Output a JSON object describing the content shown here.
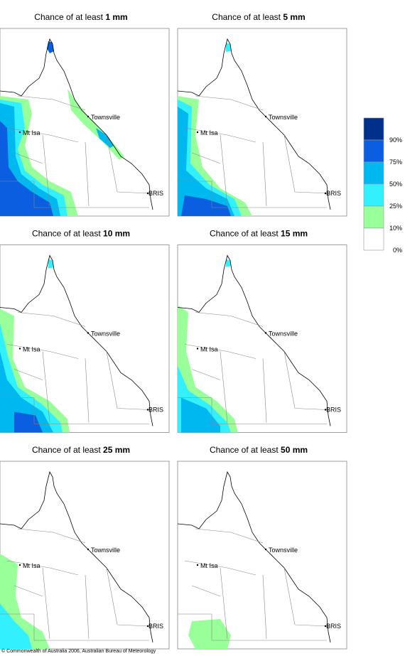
{
  "panels": [
    {
      "title_prefix": "Chance of at least ",
      "amount": "1 mm",
      "places": [
        "Townsville",
        "Mt Isa",
        "BRIS"
      ]
    },
    {
      "title_prefix": "Chance of at least ",
      "amount": "5 mm",
      "places": [
        "Townsville",
        "Mt Isa",
        "BRIS"
      ]
    },
    {
      "title_prefix": "Chance of at least ",
      "amount": "10 mm",
      "places": [
        "Townsville",
        "Mt Isa",
        "BRIS"
      ]
    },
    {
      "title_prefix": "Chance of at least ",
      "amount": "15 mm",
      "places": [
        "Townsville",
        "Mt Isa",
        "BRIS"
      ]
    },
    {
      "title_prefix": "Chance of at least ",
      "amount": "25 mm",
      "places": [
        "Townsville",
        "Mt Isa",
        "BRIS"
      ]
    },
    {
      "title_prefix": "Chance of at least ",
      "amount": "50 mm",
      "places": [
        "Townsville",
        "Mt Isa",
        "BRIS"
      ]
    }
  ],
  "legend": [
    {
      "color": "#00308a",
      "label": "90%"
    },
    {
      "color": "#0b5ee0",
      "label": "75%"
    },
    {
      "color": "#00b8f0",
      "label": "50%"
    },
    {
      "color": "#33f0ff",
      "label": "25%"
    },
    {
      "color": "#99ff99",
      "label": "10%"
    },
    {
      "color": "#ffffff",
      "label": "0%"
    }
  ],
  "footer": "© Commonwealth of Australia 2006, Australian Bureau of Meteorology"
}
